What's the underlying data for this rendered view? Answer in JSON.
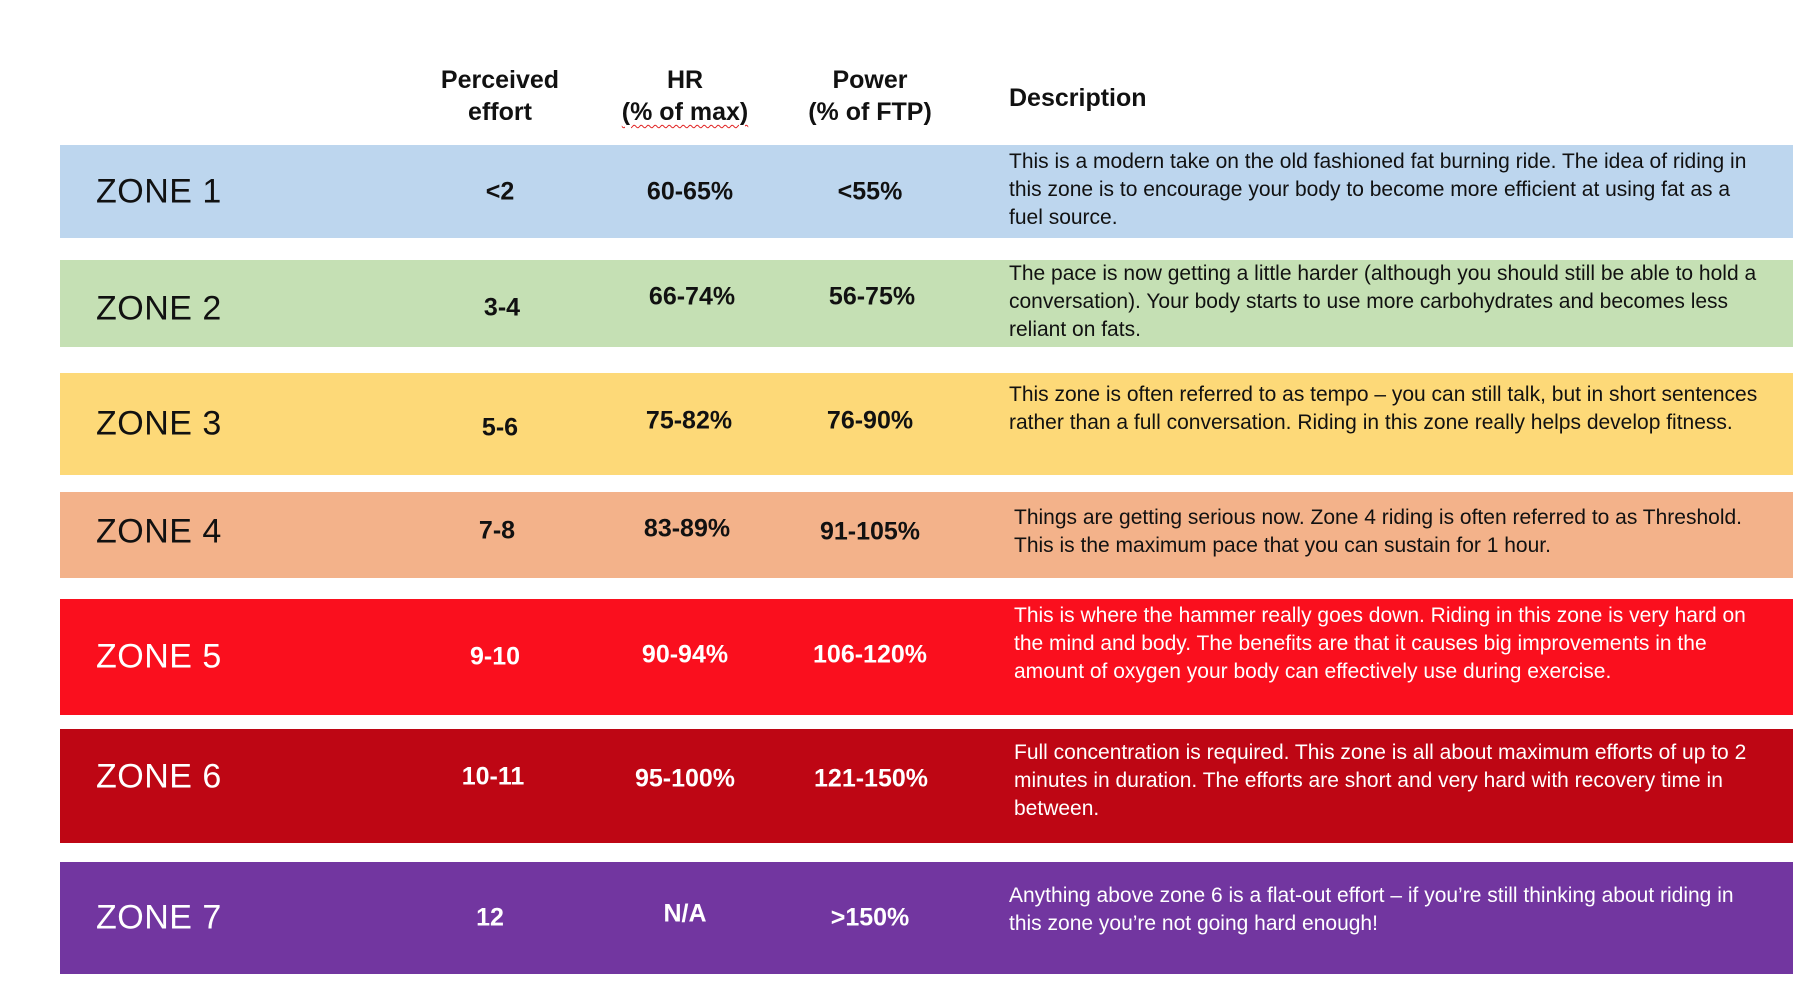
{
  "headers": {
    "effort": [
      "Perceived",
      "effort"
    ],
    "hr": [
      "HR",
      "(% of max)"
    ],
    "power": [
      "Power",
      "(% of FTP)"
    ],
    "description": "Description"
  },
  "zones": [
    {
      "name": "ZONE 1",
      "effort": "<2",
      "hr": "60-65%",
      "power": "<55%",
      "color": "#bdd6ee",
      "text": "dark-text",
      "description": "This is a modern take on the old fashioned fat burning ride. The idea of riding in this zone is to encourage your body to become more efficient at using fat as a fuel source."
    },
    {
      "name": "ZONE 2",
      "effort": "3-4",
      "hr": "66-74%",
      "power": "56-75%",
      "color": "#c5e0b4",
      "text": "dark-text",
      "description": "The pace is now getting a little harder (although you should still be able to hold a conversation). Your body starts to use more carbohydrates and becomes less reliant on fats."
    },
    {
      "name": "ZONE 3",
      "effort": "5-6",
      "hr": "75-82%",
      "power": "76-90%",
      "color": "#fdd978",
      "text": "dark-text",
      "description": "This zone is often referred to as tempo – you can still talk, but in short sentences rather than a full conversation. Riding in this zone really helps develop fitness."
    },
    {
      "name": "ZONE 4",
      "effort": "7-8",
      "hr": "83-89%",
      "power": "91-105%",
      "color": "#f3b28a",
      "text": "dark-text",
      "description": "Things are getting serious now. Zone 4 riding is often referred to as Threshold. This is the maximum pace that you can sustain for 1 hour."
    },
    {
      "name": "ZONE 5",
      "effort": "9-10",
      "hr": "90-94%",
      "power": "106-120%",
      "color": "#fa0f1e",
      "text": "light-text",
      "description": "This is where the hammer really goes down. Riding in this zone is very hard on the mind and body. The benefits are that it causes big improvements in the amount of oxygen your body can effectively use during exercise."
    },
    {
      "name": "ZONE 6",
      "effort": "10-11",
      "hr": "95-100%",
      "power": "121-150%",
      "color": "#be0614",
      "text": "light-text",
      "description": "Full concentration is required. This zone is all about maximum efforts of up to 2 minutes in duration. The efforts are short and very hard with recovery time in between."
    },
    {
      "name": "ZONE 7",
      "effort": "12",
      "hr": "N/A",
      "power": ">150%",
      "color": "#7236a0",
      "text": "light-text",
      "description": "Anything above zone 6 is a flat-out effort – if you’re still thinking about riding in this zone you’re not going hard enough!"
    }
  ]
}
